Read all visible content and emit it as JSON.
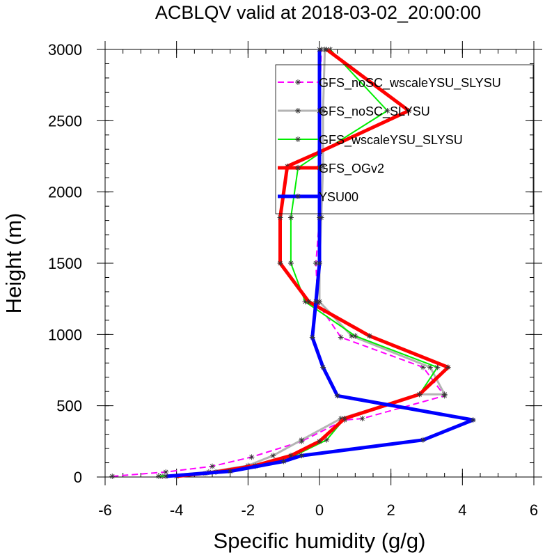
{
  "chart_data": {
    "type": "line",
    "title": "ACBLQV valid at 2018-03-02_20:00:00",
    "xlabel": "Specific humidity (g/g)",
    "ylabel": "Height (m)",
    "xlim": [
      -6,
      6
    ],
    "ylim": [
      0,
      3000
    ],
    "xticks": [
      -6,
      -4,
      -2,
      0,
      2,
      4,
      6
    ],
    "yticks": [
      0,
      500,
      1000,
      1500,
      2000,
      2500,
      3000
    ],
    "xtick_labels": [
      "-6",
      "-4",
      "-2",
      "0",
      "2",
      "4",
      "6"
    ],
    "ytick_labels": [
      "0",
      "500",
      "1000",
      "1500",
      "2000",
      "2500",
      "3000"
    ],
    "grid": false,
    "legend_position": "top-right",
    "series": [
      {
        "name": "GFS_noSC_wscaleYSU_SLYSU",
        "color": "#ff00ff",
        "dash": true,
        "width": 2,
        "points": [
          [
            -5.8,
            5
          ],
          [
            -4.3,
            35
          ],
          [
            -3.0,
            75
          ],
          [
            -1.9,
            140
          ],
          [
            -0.5,
            250
          ],
          [
            0.7,
            400
          ],
          [
            1.2,
            410
          ],
          [
            3.5,
            570
          ],
          [
            2.9,
            770
          ],
          [
            0.6,
            980
          ],
          [
            -0.05,
            1220
          ],
          [
            -0.1,
            1500
          ],
          [
            0.0,
            1820
          ],
          [
            0.0,
            2170
          ],
          [
            0.0,
            2570
          ],
          [
            0.05,
            3000
          ]
        ]
      },
      {
        "name": "GFS_noSC_SLYSU",
        "color": "#b4b4b4",
        "dash": false,
        "width": 3,
        "points": [
          [
            -4.4,
            5
          ],
          [
            -3.1,
            35
          ],
          [
            -2.0,
            80
          ],
          [
            -1.3,
            150
          ],
          [
            -0.5,
            260
          ],
          [
            0.6,
            410
          ],
          [
            2.8,
            580
          ],
          [
            3.5,
            580
          ],
          [
            3.1,
            770
          ],
          [
            0.9,
            990
          ],
          [
            0.0,
            1230
          ],
          [
            0.0,
            1500
          ],
          [
            0.05,
            1820
          ],
          [
            0.1,
            2180
          ],
          [
            0.1,
            2570
          ],
          [
            0.15,
            3000
          ]
        ]
      },
      {
        "name": "GFS_wscaleYSU_SLYSU",
        "color": "#00ee00",
        "dash": false,
        "width": 2,
        "points": [
          [
            -4.5,
            5
          ],
          [
            -3.2,
            25
          ],
          [
            -1.8,
            75
          ],
          [
            -0.7,
            150
          ],
          [
            0.2,
            260
          ],
          [
            0.7,
            410
          ],
          [
            2.8,
            580
          ],
          [
            3.3,
            770
          ],
          [
            1.0,
            990
          ],
          [
            -0.4,
            1230
          ],
          [
            -0.8,
            1500
          ],
          [
            -0.8,
            1820
          ],
          [
            -0.6,
            2170
          ],
          [
            0.0,
            2270
          ],
          [
            1.9,
            2570
          ],
          [
            0.3,
            3000
          ]
        ]
      },
      {
        "name": "GFS_OGv2",
        "color": "#ff0000",
        "dash": false,
        "width": 5,
        "points": [
          [
            -4.0,
            5
          ],
          [
            -2.9,
            35
          ],
          [
            -1.8,
            80
          ],
          [
            -0.8,
            150
          ],
          [
            0.0,
            250
          ],
          [
            0.7,
            410
          ],
          [
            2.8,
            580
          ],
          [
            3.6,
            770
          ],
          [
            1.4,
            990
          ],
          [
            -0.3,
            1230
          ],
          [
            -1.1,
            1500
          ],
          [
            -1.1,
            1820
          ],
          [
            -0.9,
            2180
          ],
          [
            0.0,
            2280
          ],
          [
            2.5,
            2570
          ],
          [
            0.2,
            3000
          ]
        ]
      },
      {
        "name": "YSU00",
        "color": "#0000ff",
        "dash": false,
        "width": 5,
        "points": [
          [
            -4.3,
            5
          ],
          [
            -2.5,
            40
          ],
          [
            -1.0,
            110
          ],
          [
            -0.5,
            150
          ],
          [
            2.9,
            260
          ],
          [
            4.3,
            400
          ],
          [
            0.5,
            570
          ],
          [
            0.1,
            770
          ],
          [
            -0.2,
            980
          ],
          [
            -0.1,
            1230
          ],
          [
            0.0,
            1500
          ],
          [
            0.0,
            1820
          ],
          [
            0.0,
            2170
          ],
          [
            0.0,
            2570
          ],
          [
            0.0,
            3000
          ]
        ]
      }
    ]
  }
}
